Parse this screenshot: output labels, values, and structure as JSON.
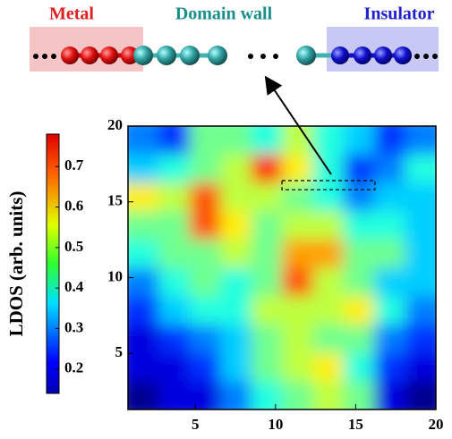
{
  "chart_data": {
    "type": "heatmap",
    "labels": [
      "Metal",
      "Domain wall",
      "Insulator"
    ],
    "label_colors": [
      "#e02020",
      "#1a8f8a",
      "#2020d0"
    ],
    "colorbar_label": "LDOS (arb. units)",
    "xlim": [
      0.8,
      20
    ],
    "ylim": [
      1.3,
      20
    ],
    "xticks": [
      5,
      10,
      15,
      20
    ],
    "yticks": [
      5,
      10,
      15,
      20
    ],
    "clim": [
      0.14,
      0.78
    ],
    "cticks": [
      0.2,
      0.3,
      0.4,
      0.5,
      0.6,
      0.7
    ],
    "colormap": "jet",
    "region": {
      "x": [
        10.4,
        16.2
      ],
      "y": [
        15.8,
        16.4
      ]
    },
    "values": [
      [
        0.3,
        0.25,
        0.45,
        0.45,
        0.4,
        0.5,
        0.4,
        0.35,
        0.25,
        0.3
      ],
      [
        0.35,
        0.4,
        0.45,
        0.5,
        0.7,
        0.55,
        0.4,
        0.25,
        0.3,
        0.4
      ],
      [
        0.55,
        0.5,
        0.65,
        0.5,
        0.5,
        0.45,
        0.4,
        0.3,
        0.35,
        0.35
      ],
      [
        0.45,
        0.45,
        0.65,
        0.55,
        0.45,
        0.5,
        0.5,
        0.4,
        0.4,
        0.35
      ],
      [
        0.4,
        0.45,
        0.45,
        0.5,
        0.45,
        0.6,
        0.6,
        0.45,
        0.45,
        0.35
      ],
      [
        0.3,
        0.4,
        0.45,
        0.4,
        0.45,
        0.65,
        0.5,
        0.45,
        0.35,
        0.35
      ],
      [
        0.25,
        0.35,
        0.4,
        0.4,
        0.5,
        0.5,
        0.5,
        0.55,
        0.4,
        0.3
      ],
      [
        0.2,
        0.25,
        0.3,
        0.35,
        0.45,
        0.5,
        0.45,
        0.45,
        0.3,
        0.25
      ],
      [
        0.2,
        0.2,
        0.25,
        0.35,
        0.45,
        0.5,
        0.55,
        0.4,
        0.25,
        0.2
      ],
      [
        0.15,
        0.2,
        0.2,
        0.3,
        0.4,
        0.45,
        0.5,
        0.45,
        0.2,
        0.15
      ]
    ]
  }
}
